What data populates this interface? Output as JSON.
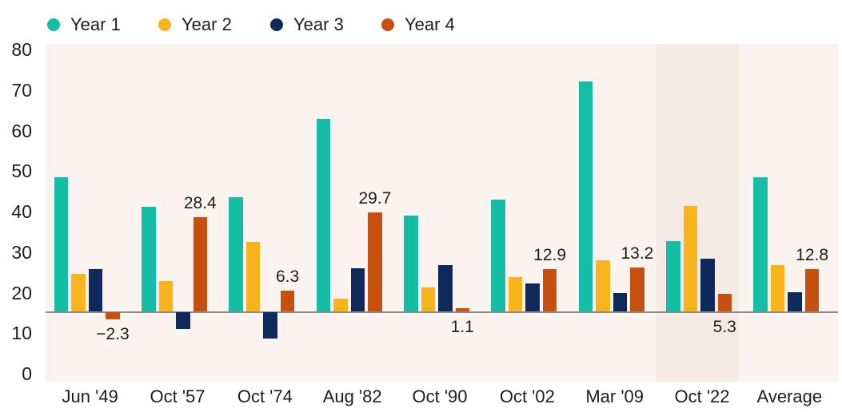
{
  "legend": {
    "items": [
      {
        "label": "Year 1",
        "color": "#15BDA4"
      },
      {
        "label": "Year 2",
        "color": "#F8B41D"
      },
      {
        "label": "Year 3",
        "color": "#0E2A5C"
      },
      {
        "label": "Year 4",
        "color": "#C5500F"
      }
    ]
  },
  "y_axis": {
    "tick_labels": [
      "80",
      "70",
      "60",
      "50",
      "40",
      "30",
      "20",
      "10",
      "0"
    ]
  },
  "x_axis": {
    "categories": [
      "Jun '49",
      "Oct '57",
      "Oct '74",
      "Aug '82",
      "Oct '90",
      "Oct '02",
      "Mar '09",
      "Oct '22",
      "Average"
    ]
  },
  "chart_data": {
    "type": "bar",
    "title": "",
    "categories": [
      "Jun '49",
      "Oct '57",
      "Oct '74",
      "Aug '82",
      "Oct '90",
      "Oct '02",
      "Mar '09",
      "Oct '22",
      "Average"
    ],
    "series": [
      {
        "name": "Year 1",
        "color": "#15BDA4",
        "values": [
          40.2,
          31.4,
          34.4,
          57.8,
          28.9,
          33.6,
          68.9,
          21.1,
          40.2
        ]
      },
      {
        "name": "Year 2",
        "color": "#F8B41D",
        "values": [
          11.4,
          9.3,
          21.0,
          3.9,
          7.3,
          10.3,
          15.5,
          31.8,
          14.0
        ]
      },
      {
        "name": "Year 3",
        "color": "#0E2A5C",
        "values": [
          12.9,
          -5.1,
          -8.0,
          13.1,
          14.1,
          8.5,
          5.7,
          15.9,
          5.9
        ]
      },
      {
        "name": "Year 4",
        "color": "#C5500F",
        "values": [
          -2.3,
          28.4,
          6.3,
          29.7,
          1.1,
          12.9,
          13.2,
          5.3,
          12.8
        ],
        "data_labels": [
          "−2.3",
          "28.4",
          "6.3",
          "29.7",
          "1.1",
          "12.9",
          "13.2",
          "5.3",
          "12.8"
        ]
      }
    ],
    "y_ticks": [
      80,
      70,
      60,
      50,
      40,
      30,
      20,
      10,
      0
    ],
    "y_tick_range": [
      0,
      80
    ],
    "grid": false,
    "legend_position": "top",
    "highlighted_category": "Oct '22",
    "labeled_series": "Year 4"
  },
  "colors": {
    "page_bg": "#ffffff",
    "plot_bg": "#FAF3EF",
    "highlight_bg": "#F5EAE4",
    "axis_line": "#8C8C8C",
    "text": "#1d1d1d"
  }
}
